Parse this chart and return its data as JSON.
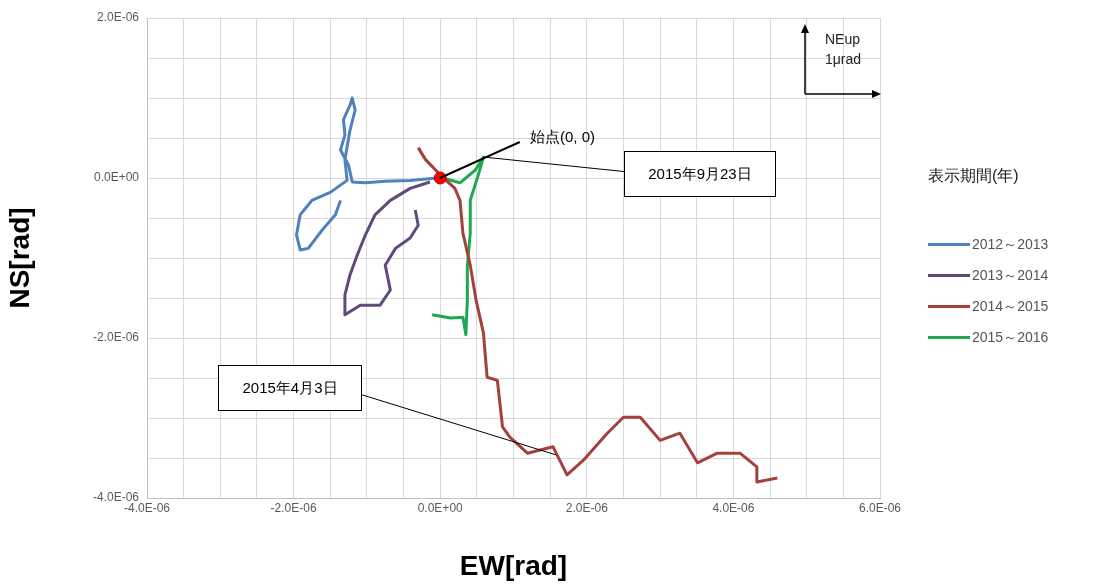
{
  "chart_data": {
    "type": "line",
    "xlabel": "EW[rad]",
    "ylabel": "NS[rad]",
    "legend_title": "表示期間(年)",
    "legend": "right",
    "grid": true,
    "xlim": [
      -4e-06,
      6e-06
    ],
    "ylim": [
      -4e-06,
      2e-06
    ],
    "xticks": [
      {
        "value": -4e-06,
        "label": "-4.0E-06"
      },
      {
        "value": -3.5e-06,
        "label": null
      },
      {
        "value": -3e-06,
        "label": null
      },
      {
        "value": -2.5e-06,
        "label": null
      },
      {
        "value": -2e-06,
        "label": "-2.0E-06"
      },
      {
        "value": -1.5e-06,
        "label": null
      },
      {
        "value": -1e-06,
        "label": null
      },
      {
        "value": -5e-07,
        "label": null
      },
      {
        "value": 0,
        "label": "0.0E+00"
      },
      {
        "value": 5e-07,
        "label": null
      },
      {
        "value": 1e-06,
        "label": null
      },
      {
        "value": 1.5e-06,
        "label": null
      },
      {
        "value": 2e-06,
        "label": "2.0E-06"
      },
      {
        "value": 2.5e-06,
        "label": null
      },
      {
        "value": 3e-06,
        "label": null
      },
      {
        "value": 3.5e-06,
        "label": null
      },
      {
        "value": 4e-06,
        "label": "4.0E-06"
      },
      {
        "value": 4.5e-06,
        "label": null
      },
      {
        "value": 5e-06,
        "label": null
      },
      {
        "value": 5.5e-06,
        "label": null
      },
      {
        "value": 6e-06,
        "label": "6.0E-06"
      }
    ],
    "yticks": [
      {
        "value": -4e-06,
        "label": "-4.0E-06"
      },
      {
        "value": -3.5e-06,
        "label": null
      },
      {
        "value": -3e-06,
        "label": null
      },
      {
        "value": -2.5e-06,
        "label": null
      },
      {
        "value": -2e-06,
        "label": "-2.0E-06"
      },
      {
        "value": -1.5e-06,
        "label": null
      },
      {
        "value": -1e-06,
        "label": null
      },
      {
        "value": -5e-07,
        "label": null
      },
      {
        "value": 0,
        "label": "0.0E+00"
      },
      {
        "value": 5e-07,
        "label": null
      },
      {
        "value": 1e-06,
        "label": null
      },
      {
        "value": 1.5e-06,
        "label": null
      },
      {
        "value": 2e-06,
        "label": "2.0E-06"
      }
    ],
    "series": [
      {
        "name": "2012～2013",
        "color": "#4f81bd",
        "x": [
          -4e-08,
          -4.1e-07,
          -7.5e-07,
          -1.02e-06,
          -1.2e-06,
          -1.25e-06,
          -1.36e-06,
          -1.3e-06,
          -1.32e-06,
          -1.23e-06,
          -1.2e-06,
          -1.16e-06,
          -1.23e-06,
          -1.3e-06,
          -1.27e-06,
          -1.5e-06,
          -1.75e-06,
          -1.91e-06,
          -1.96e-06,
          -1.91e-06,
          -1.8e-06,
          -1.61e-06,
          -1.43e-06,
          -1.36e-06
        ],
        "values": [
          0,
          -3e-08,
          -4e-08,
          -6e-08,
          -5e-08,
          1.6e-07,
          3.5e-07,
          5.4e-07,
          7.3e-07,
          9.1e-07,
          1e-06,
          8.5e-07,
          6e-07,
          2.3e-07,
          -3e-08,
          -1.8e-07,
          -2.8e-07,
          -4.6e-07,
          -7.1e-07,
          -9e-07,
          -8.8e-07,
          -6.5e-07,
          -4.6e-07,
          -2.8e-07
        ]
      },
      {
        "name": "2013～2014",
        "color": "#604a7b",
        "x": [
          -1.4e-07,
          -4.1e-07,
          -6.8e-07,
          -8.9e-07,
          -1.02e-06,
          -1.13e-06,
          -1.23e-06,
          -1.3e-06,
          -1.3e-06,
          -1.09e-06,
          -8.2e-07,
          -6.8e-07,
          -7.5e-07,
          -6.1e-07,
          -4.1e-07,
          -3e-07,
          -3.4e-07
        ],
        "values": [
          -5e-08,
          -1.3e-07,
          -2.8e-07,
          -4.6e-07,
          -7.1e-07,
          -9.6e-07,
          -1.21e-06,
          -1.46e-06,
          -1.71e-06,
          -1.59e-06,
          -1.59e-06,
          -1.4e-06,
          -1.09e-06,
          -8.8e-07,
          -7.5e-07,
          -5.9e-07,
          -4e-07
        ]
      },
      {
        "name": "2014～2015",
        "color": "#a5403c",
        "x": [
          -3e-07,
          -2e-07,
          0,
          2e-07,
          2.7e-07,
          3.1e-07,
          4.1e-07,
          4.9e-07,
          5.9e-07,
          6.4e-07,
          7.8e-07,
          8.5e-07,
          9.5e-07,
          1.19e-06,
          1.54e-06,
          1.73e-06,
          1.95e-06,
          2.28e-06,
          2.5e-06,
          2.73e-06,
          3e-06,
          3.27e-06,
          3.51e-06,
          3.78e-06,
          4.09e-06,
          4.32e-06,
          4.32e-06,
          4.6e-06
        ],
        "values": [
          3.8e-07,
          2.3e-07,
          4e-08,
          -1.3e-07,
          -2.8e-07,
          -6.9e-07,
          -1.09e-06,
          -1.53e-06,
          -1.94e-06,
          -2.49e-06,
          -2.53e-06,
          -3.11e-06,
          -3.24e-06,
          -3.44e-06,
          -3.36e-06,
          -3.71e-06,
          -3.53e-06,
          -3.19e-06,
          -2.99e-06,
          -2.99e-06,
          -3.28e-06,
          -3.19e-06,
          -3.56e-06,
          -3.44e-06,
          -3.44e-06,
          -3.61e-06,
          -3.8e-06,
          -3.75e-06
        ]
      },
      {
        "name": "2015～2016",
        "color": "#1fa84f",
        "x": [
          3e-08,
          2.7e-07,
          4.8e-07,
          5.9e-07,
          5.2e-07,
          4.1e-07,
          4.1e-07,
          3.7e-07,
          3.7e-07,
          3.5e-07,
          3.1e-07,
          1.4e-07,
          -1.1e-07
        ],
        "values": [
          0,
          -6e-08,
          1e-07,
          2.6e-07,
          4e-08,
          -2.8e-07,
          -6.9e-07,
          -1.11e-06,
          -1.53e-06,
          -1.96e-06,
          -1.74e-06,
          -1.75e-06,
          -1.71e-06
        ]
      },
      {
        "type": "scatter",
        "marker": "circle",
        "color": "#ff0000",
        "x": [
          0
        ],
        "values": [
          0
        ]
      }
    ],
    "annotations": [
      {
        "text": "始点(0, 0)",
        "x": 0,
        "y": 0
      },
      {
        "text": "2015年9月23日",
        "x": 5.9e-07,
        "y": 2.6e-07
      },
      {
        "text": "2015年4月3日",
        "x": 1.57e-06,
        "y": -3.46e-06
      },
      "NEup",
      "1μrad"
    ]
  }
}
